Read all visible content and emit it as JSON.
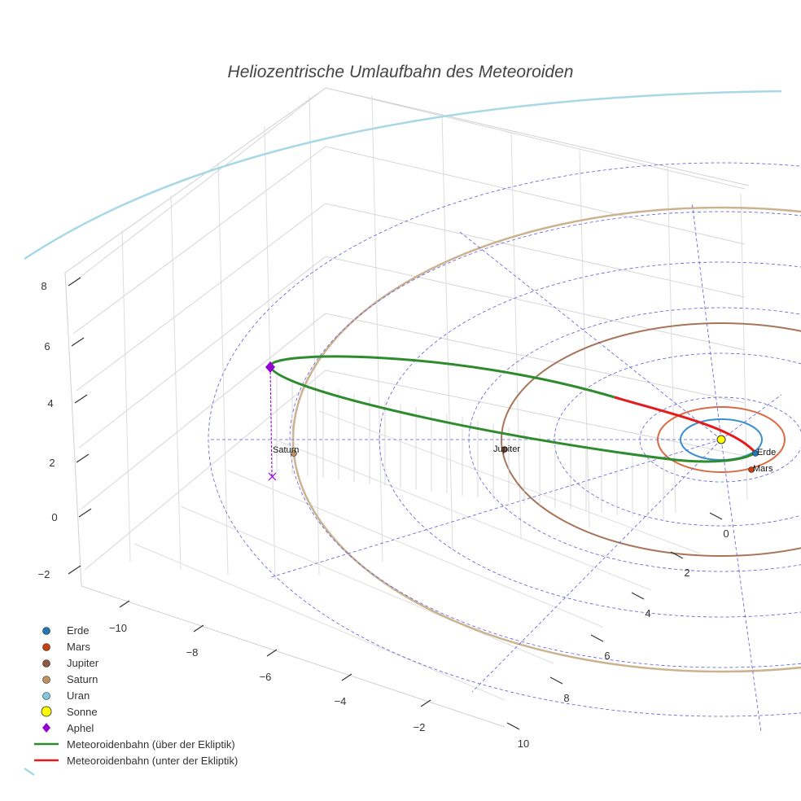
{
  "chart_data": {
    "type": "scatter3d",
    "title": "Heliozentrische Umlaufbahn des Meteoroiden",
    "axes": {
      "x": {
        "ticks": [
          -10,
          -8,
          -6,
          -4,
          -2
        ]
      },
      "y": {
        "ticks": [
          0,
          2,
          4,
          6,
          8,
          10
        ]
      },
      "z": {
        "ticks": [
          -2,
          0,
          2,
          4,
          6,
          8
        ]
      }
    },
    "planets": [
      {
        "name": "Erde",
        "color": "#1f77b4",
        "label": "Erde",
        "orbit_color": "#3a8fd0"
      },
      {
        "name": "Mars",
        "color": "#c8400e",
        "label": "Mars",
        "orbit_color": "#d96a44"
      },
      {
        "name": "Jupiter",
        "color": "#8c5640",
        "label": "Jupiter",
        "orbit_color": "#a8755a"
      },
      {
        "name": "Saturn",
        "color": "#c09060",
        "label": "Saturn",
        "orbit_color": "#cdb28f"
      },
      {
        "name": "Uran",
        "color": "#7fc7e0",
        "label": "",
        "orbit_color": "#a8d8e6"
      }
    ],
    "legend": [
      {
        "label": "Erde",
        "symbol": "circle",
        "color": "#1f77b4"
      },
      {
        "label": "Mars",
        "symbol": "circle",
        "color": "#c8400e"
      },
      {
        "label": "Jupiter",
        "symbol": "circle",
        "color": "#8c5640"
      },
      {
        "label": "Saturn",
        "symbol": "circle",
        "color": "#c09060"
      },
      {
        "label": "Uran",
        "symbol": "circle",
        "color": "#7fc7e0"
      },
      {
        "label": "Sonne",
        "symbol": "circle-large",
        "color": "#ffff00"
      },
      {
        "label": "Aphel",
        "symbol": "diamond",
        "color": "#9400d3"
      },
      {
        "label": "Meteoroidenbahn (über der Ekliptik)",
        "symbol": "line",
        "color": "#2e8b2e"
      },
      {
        "label": "Meteoroidenbahn (unter der Ekliptik)",
        "symbol": "line",
        "color": "#e41a1c"
      }
    ],
    "aphel_color": "#9400d3",
    "sun_color": "#ffff00",
    "meteoroid_above_color": "#2e8b2e",
    "meteoroid_below_color": "#e41a1c",
    "ecliptic_grid_color": "#5a5ae0"
  }
}
